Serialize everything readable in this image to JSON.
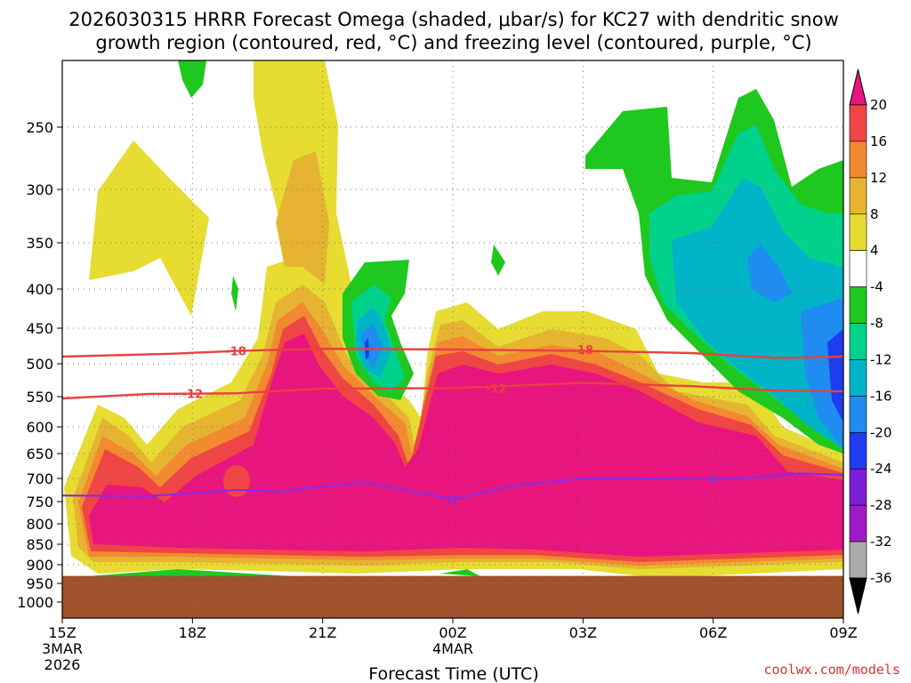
{
  "chart_data": {
    "type": "heatmap",
    "title_line1": "2026030315 HRRR Forecast Omega (shaded, μbar/s) for KC27 with dendritic snow",
    "title_line2": "growth region (contoured, red, °C) and freezing level (contoured, purple, °C)",
    "xlabel": "Forecast Time (UTC)",
    "x_ticks": [
      "15Z",
      "18Z",
      "21Z",
      "00Z",
      "03Z",
      "06Z",
      "09Z"
    ],
    "x_subticks": [
      {
        "tick": "15Z",
        "lines": [
          "3MAR",
          "2026"
        ]
      },
      {
        "tick": "00Z",
        "lines": [
          "4MAR"
        ]
      }
    ],
    "y_ticks": [
      250,
      300,
      350,
      400,
      450,
      500,
      550,
      600,
      650,
      700,
      750,
      800,
      850,
      900,
      950,
      1000
    ],
    "ylim": [
      1000,
      200
    ],
    "x_hours": [
      0,
      18
    ],
    "grid": true,
    "colorbar": {
      "levels": [
        20,
        16,
        12,
        8,
        4,
        -4,
        -8,
        -12,
        -16,
        -20,
        -24,
        -28,
        -32,
        -36
      ],
      "colors": [
        "#e8157e",
        "#f04545",
        "#f28a30",
        "#e6b431",
        "#e6dc32",
        "#ffffff",
        "#1ec81e",
        "#00d28c",
        "#00b4c8",
        "#1e8cf0",
        "#1e3cf0",
        "#7b1fd6",
        "#a019c8",
        "#aaaaaa",
        "#000000"
      ]
    },
    "contours": [
      {
        "name": "-18",
        "color": "#e84040",
        "points": [
          [
            0,
            490
          ],
          [
            2.5,
            486
          ],
          [
            4,
            482
          ],
          [
            6,
            479
          ],
          [
            9,
            480
          ],
          [
            12,
            482
          ],
          [
            14.5,
            485
          ],
          [
            16.5,
            492
          ],
          [
            18,
            490
          ]
        ]
      },
      {
        "name": "-12",
        "color": "#e84040",
        "points": [
          [
            0,
            553
          ],
          [
            2,
            546
          ],
          [
            4,
            545
          ],
          [
            6,
            538
          ],
          [
            9,
            537
          ],
          [
            12,
            529
          ],
          [
            14.5,
            534
          ],
          [
            16.5,
            541
          ],
          [
            18,
            542
          ]
        ]
      },
      {
        "name": "freezing",
        "color": "#8a2be2",
        "points": [
          [
            0,
            737
          ],
          [
            2,
            738
          ],
          [
            4,
            725
          ],
          [
            5,
            728
          ],
          [
            7,
            708
          ],
          [
            9,
            745
          ],
          [
            10.5,
            714
          ],
          [
            12,
            700
          ],
          [
            13.5,
            700
          ],
          [
            15,
            702
          ],
          [
            16,
            698
          ],
          [
            17,
            690
          ],
          [
            18,
            693
          ]
        ]
      }
    ],
    "contour_labels": [
      {
        "text": "-18",
        "hour": 4,
        "p": 482,
        "color": "#e84040"
      },
      {
        "text": "-12",
        "hour": 3,
        "p": 545,
        "color": "#e84040"
      },
      {
        "text": "-18",
        "hour": 12,
        "p": 480,
        "color": "#e84040"
      },
      {
        "text": "-12",
        "hour": 10,
        "p": 537,
        "color": "#e84040"
      }
    ],
    "freezing_markers": [
      [
        9,
        745
      ],
      [
        15,
        702
      ]
    ],
    "ground_top_p": 930
  },
  "footer": {
    "credit": "coolwx.com/models"
  }
}
